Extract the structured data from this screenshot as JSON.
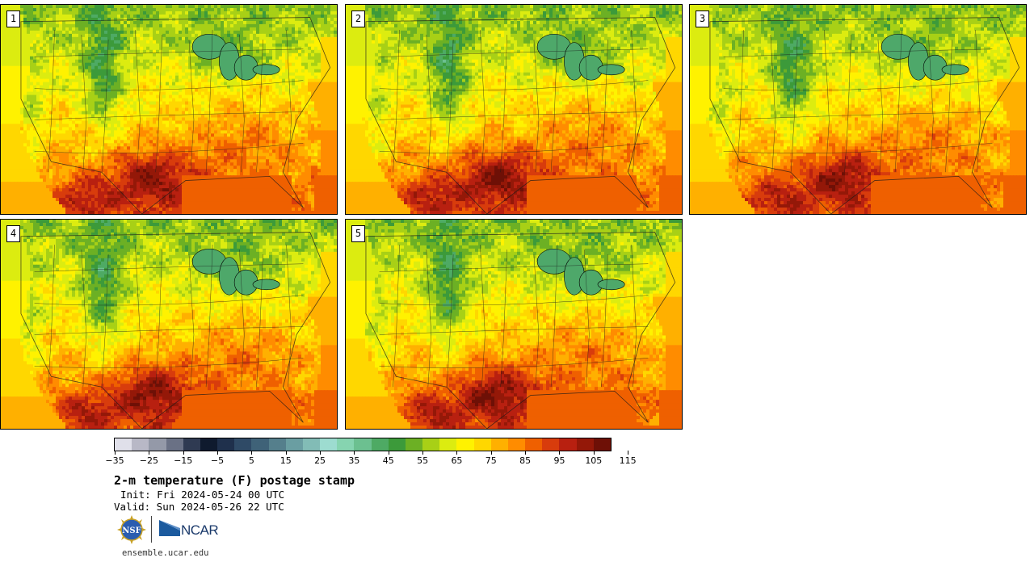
{
  "panels": [
    {
      "label": "1",
      "seed": 11,
      "heat": 1.0
    },
    {
      "label": "2",
      "seed": 23,
      "heat": 1.05
    },
    {
      "label": "3",
      "seed": 37,
      "heat": 0.98
    },
    {
      "label": "4",
      "seed": 41,
      "heat": 1.02
    },
    {
      "label": "5",
      "seed": 53,
      "heat": 1.04
    }
  ],
  "colorbar": {
    "colors": [
      "#e0e0ea",
      "#b8b8c6",
      "#9499a8",
      "#6a7185",
      "#2f3a52",
      "#0f1a2e",
      "#1f304c",
      "#2f4a66",
      "#3f6278",
      "#557f8c",
      "#6a9ea2",
      "#82bcb6",
      "#9ddcd0",
      "#86d4b0",
      "#6cc090",
      "#4eaa64",
      "#3c9a3a",
      "#6cb024",
      "#a8d016",
      "#dcec10",
      "#fff200",
      "#ffd700",
      "#ffb000",
      "#ff8c00",
      "#ef6000",
      "#d83c0c",
      "#b82010",
      "#941808",
      "#6e1006"
    ],
    "ticks": [
      "−35",
      "−25",
      "−15",
      "−5",
      "5",
      "15",
      "25",
      "35",
      "45",
      "55",
      "65",
      "75",
      "85",
      "95",
      "105",
      "115"
    ]
  },
  "title": "2-m temperature (F) postage stamp",
  "init": "Init: Fri 2024-05-24 00 UTC",
  "valid": "Valid: Sun 2024-05-26 22 UTC",
  "logos": {
    "nsf": "NSF",
    "ncar": "NCAR"
  },
  "website": "ensemble.ucar.edu"
}
